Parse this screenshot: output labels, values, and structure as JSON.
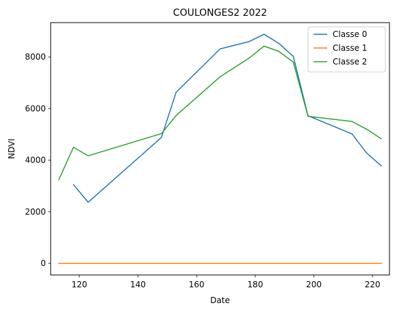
{
  "chart_data": {
    "type": "line",
    "title": "COULONGES2 2022",
    "xlabel": "Date",
    "ylabel": "NDVI",
    "xlim": [
      110.2,
      225.8
    ],
    "ylim": [
      -450,
      9330
    ],
    "xticks": [
      120,
      140,
      160,
      180,
      200,
      220
    ],
    "yticks": [
      0,
      2000,
      4000,
      6000,
      8000
    ],
    "grid": false,
    "legend_position": "top-right",
    "series": [
      {
        "name": "Classe 0",
        "color": "#1f77b4",
        "x": [
          118,
          123,
          148,
          153,
          168,
          178,
          183,
          188,
          193,
          198,
          213,
          218,
          223
        ],
        "y": [
          3050,
          2370,
          4880,
          6630,
          8310,
          8600,
          8880,
          8530,
          8020,
          5720,
          5020,
          4280,
          3780
        ]
      },
      {
        "name": "Classe 1",
        "color": "#ff7f0e",
        "x": [
          113,
          223
        ],
        "y": [
          0,
          0
        ]
      },
      {
        "name": "Classe 2",
        "color": "#2ca02c",
        "x": [
          113,
          118,
          123,
          148,
          153,
          168,
          178,
          183,
          188,
          193,
          198,
          213,
          218,
          223
        ],
        "y": [
          3250,
          4500,
          4170,
          5030,
          5730,
          7230,
          7960,
          8420,
          8220,
          7800,
          5700,
          5500,
          5200,
          4830
        ]
      }
    ]
  }
}
